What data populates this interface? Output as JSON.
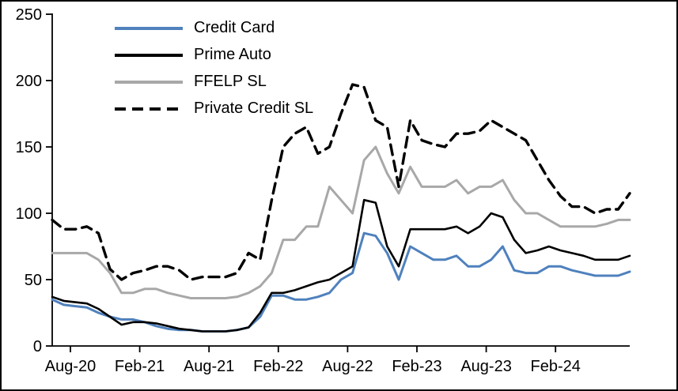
{
  "chart_data": {
    "type": "line",
    "title": "",
    "xlabel": "",
    "ylabel": "",
    "ylim": [
      0,
      250
    ],
    "y_ticks": [
      0,
      50,
      100,
      150,
      200,
      250
    ],
    "x_tick_labels": [
      "Aug-20",
      "Feb-21",
      "Aug-21",
      "Feb-22",
      "Aug-22",
      "Feb-23",
      "Aug-23",
      "Feb-24"
    ],
    "x_tick_month_positions": [
      0,
      6,
      12,
      18,
      24,
      30,
      36,
      42
    ],
    "grid": false,
    "legend_position": "top-left",
    "series": [
      {
        "name": "Credit Card",
        "color": "#4f81bd",
        "dash": "solid",
        "width": 3,
        "values": [
          35,
          31,
          30,
          29,
          25,
          22,
          20,
          20,
          18,
          15,
          13,
          12,
          12,
          11,
          11,
          11,
          12,
          14,
          22,
          38,
          38,
          35,
          35,
          37,
          40,
          50,
          55,
          85,
          83,
          70,
          50,
          75,
          70,
          65,
          65,
          68,
          60,
          60,
          65,
          75,
          57,
          55,
          55,
          60,
          60,
          57,
          55,
          53,
          53,
          53,
          56
        ]
      },
      {
        "name": "Prime Auto",
        "color": "#000000",
        "dash": "solid",
        "width": 2.6,
        "values": [
          37,
          34,
          33,
          32,
          28,
          22,
          16,
          18,
          18,
          17,
          15,
          13,
          12,
          11,
          11,
          11,
          12,
          14,
          25,
          40,
          40,
          42,
          45,
          48,
          50,
          55,
          60,
          110,
          108,
          75,
          60,
          88,
          88,
          88,
          88,
          90,
          85,
          90,
          100,
          97,
          80,
          70,
          72,
          75,
          72,
          70,
          68,
          65,
          65,
          65,
          68
        ]
      },
      {
        "name": "FFELP SL",
        "color": "#a8a8a8",
        "dash": "solid",
        "width": 3,
        "values": [
          70,
          70,
          70,
          70,
          65,
          55,
          40,
          40,
          43,
          43,
          40,
          38,
          36,
          36,
          36,
          36,
          37,
          40,
          45,
          55,
          80,
          80,
          90,
          90,
          120,
          110,
          100,
          140,
          150,
          130,
          115,
          135,
          120,
          120,
          120,
          125,
          115,
          120,
          120,
          125,
          110,
          100,
          100,
          95,
          90,
          90,
          90,
          90,
          92,
          95,
          95
        ]
      },
      {
        "name": "Private Credit SL",
        "color": "#000000",
        "dash": "dashed",
        "width": 3.4,
        "values": [
          95,
          88,
          88,
          90,
          85,
          58,
          50,
          55,
          57,
          60,
          60,
          57,
          50,
          52,
          52,
          52,
          55,
          70,
          65,
          110,
          150,
          160,
          165,
          145,
          150,
          175,
          197,
          195,
          170,
          165,
          120,
          170,
          155,
          152,
          150,
          160,
          160,
          162,
          170,
          165,
          160,
          155,
          140,
          125,
          113,
          105,
          105,
          100,
          103,
          103,
          115
        ]
      }
    ]
  },
  "colors": {
    "background": "#ffffff",
    "border": "#000000",
    "axis": "#000000",
    "tick_text": "#000000"
  }
}
